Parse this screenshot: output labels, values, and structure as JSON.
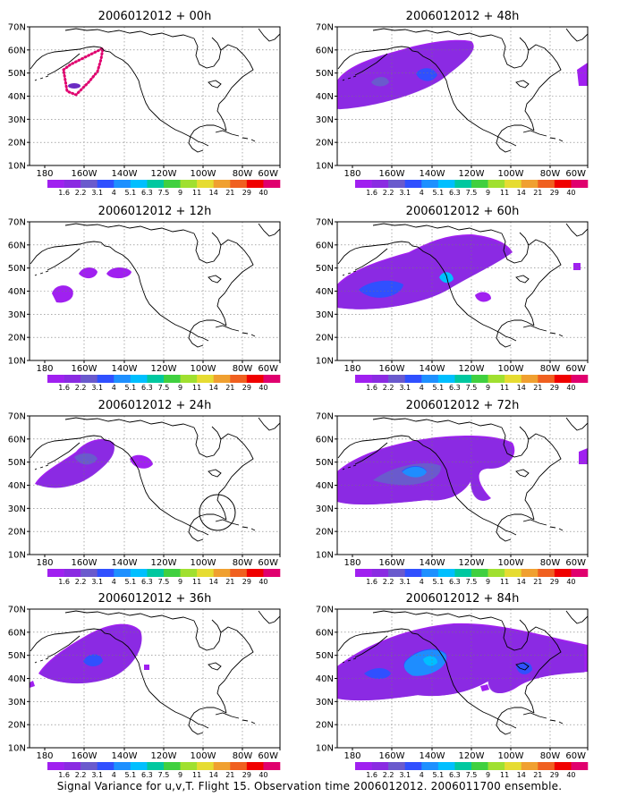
{
  "caption": "Signal Variance for u,v,T. Flight 15. Observation time 2006012012. 2006011700 ensemble.",
  "lat_labels": [
    "70N",
    "60N",
    "50N",
    "40N",
    "30N",
    "20N",
    "10N"
  ],
  "lon_labels": [
    "180",
    "160W",
    "140W",
    "120W",
    "100W",
    "80W",
    "60W"
  ],
  "colorbar_labels": [
    "1.6",
    "2.2",
    "3.1",
    "4",
    "5.1",
    "6.3",
    "7.5",
    "9",
    "11",
    "14",
    "21",
    "29",
    "40"
  ],
  "colorbar_colors": [
    "#a020f0",
    "#8a2be2",
    "#6a5acd",
    "#3050ff",
    "#1e90ff",
    "#00bfff",
    "#00c8a0",
    "#40d040",
    "#a0e030",
    "#e6dc32",
    "#f0a030",
    "#f06020",
    "#f00000",
    "#e0006e"
  ],
  "panels": [
    {
      "title": "2006012012 + 00h"
    },
    {
      "title": "2006012012 + 12h"
    },
    {
      "title": "2006012012 + 24h"
    },
    {
      "title": "2006012012 + 36h"
    },
    {
      "title": "2006012012 + 48h"
    },
    {
      "title": "2006012012 + 60h"
    },
    {
      "title": "2006012012 + 72h"
    },
    {
      "title": "2006012012 + 84h"
    }
  ]
}
